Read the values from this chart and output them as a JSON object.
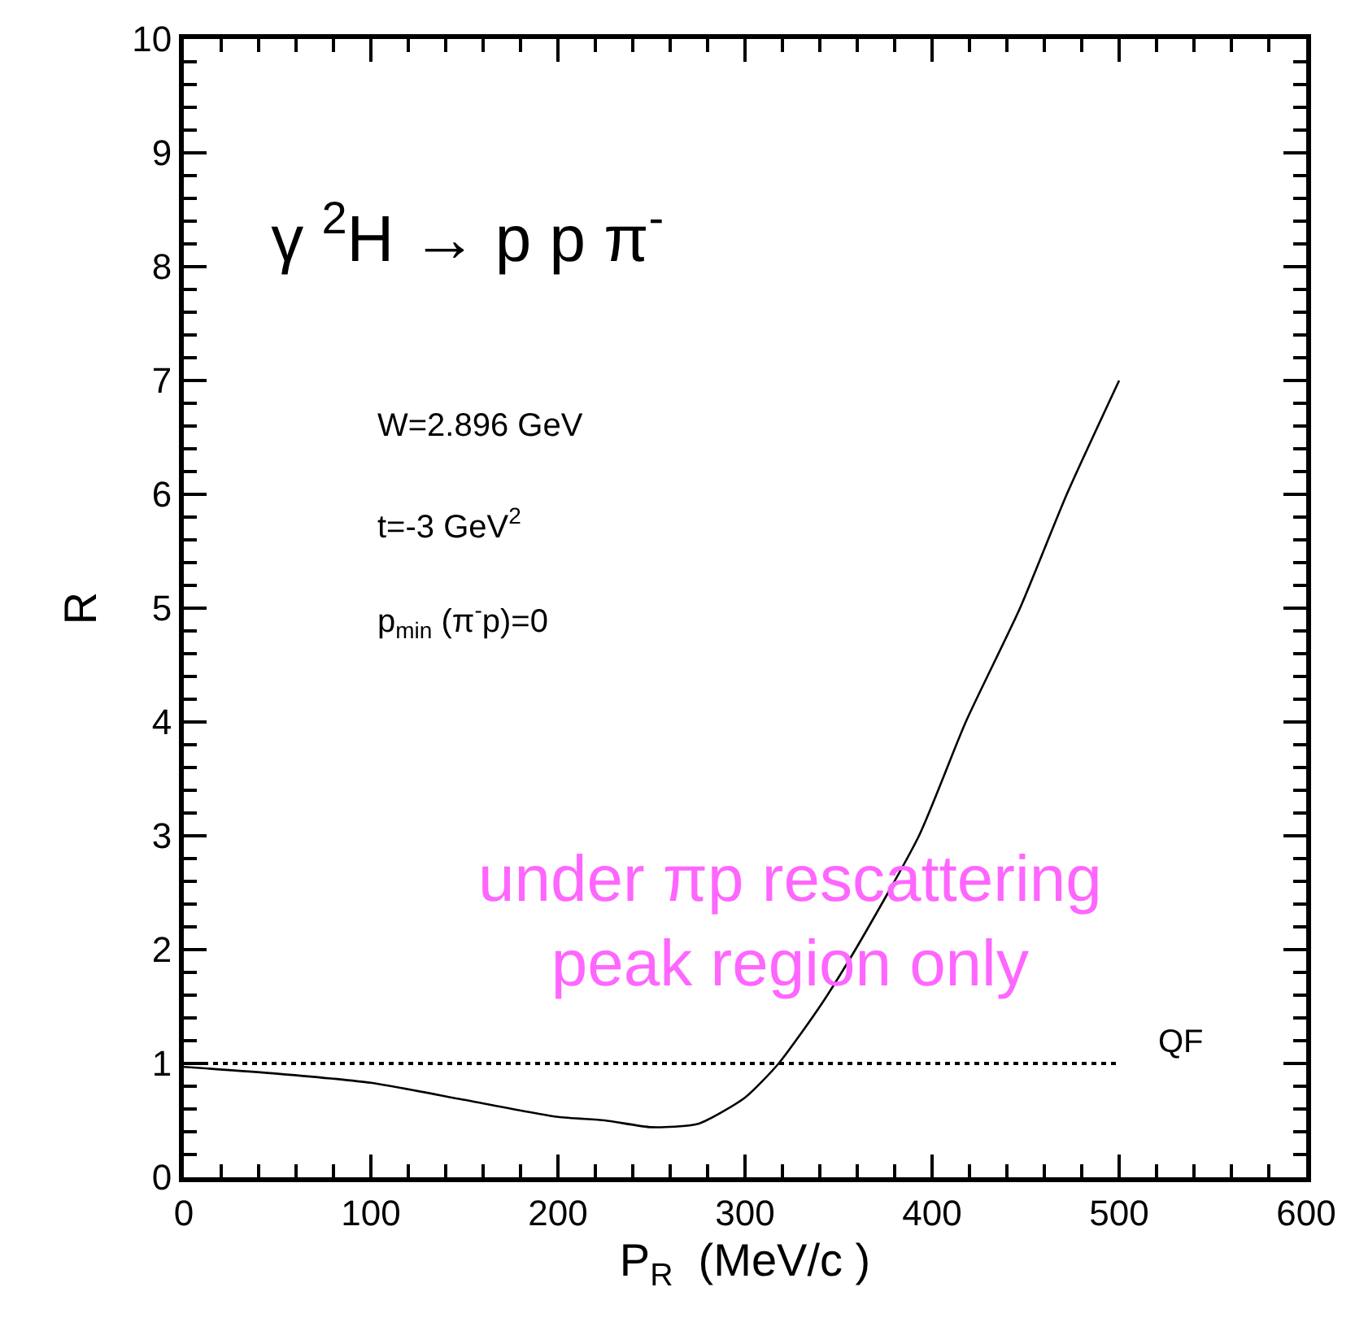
{
  "chart_data": {
    "type": "line",
    "title": "γ $^{2}$H → p p π$^{-}$",
    "xlabel": "P$_{R}$  (MeV/c )",
    "ylabel": "R",
    "x": [
      0,
      50,
      100,
      150,
      200,
      225,
      250,
      275,
      300,
      318,
      340,
      359,
      393,
      418,
      447,
      472,
      500
    ],
    "series": [
      {
        "color": "#000000",
        "values": [
          0.97,
          0.91,
          0.83,
          0.68,
          0.53,
          0.5,
          0.44,
          0.47,
          0.7,
          1.0,
          1.5,
          2.0,
          3.0,
          4.0,
          5.0,
          6.0,
          7.0
        ]
      }
    ],
    "xlim": [
      0,
      600
    ],
    "xticks": [
      0,
      100,
      200,
      300,
      400,
      500,
      600
    ],
    "ylim": [
      0,
      10
    ],
    "yticks": [
      0,
      1,
      2,
      3,
      4,
      5,
      6,
      7,
      8,
      9,
      10
    ],
    "ref_lines": [
      {
        "axis": "y",
        "value": 1,
        "label": "QF",
        "line_style": "dotted",
        "color": "#000000"
      }
    ],
    "annotations": [
      "W=2.896 GeV",
      "t=-3 GeV$^{2}$",
      "p$_{min}$ (π$^{-}$p)=0",
      "under πp rescattering\npeak region only"
    ],
    "marker": "none",
    "line_style": "solid"
  }
}
